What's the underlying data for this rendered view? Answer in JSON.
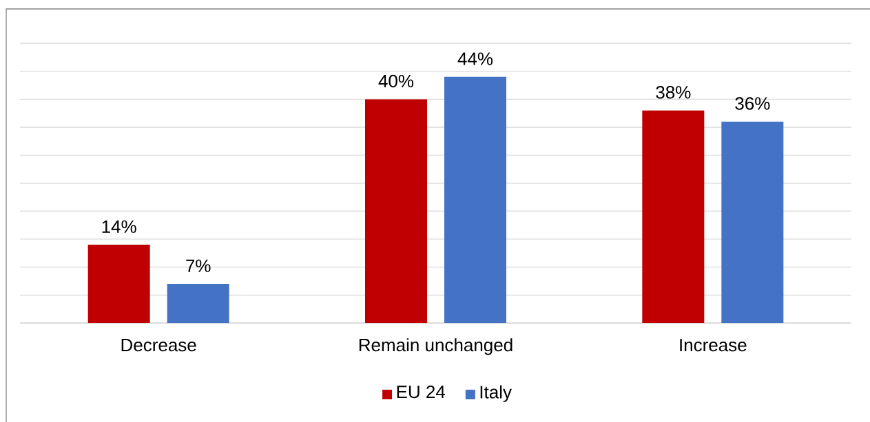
{
  "chart_data": {
    "type": "bar",
    "categories": [
      "Decrease",
      "Remain unchanged",
      "Increase"
    ],
    "series": [
      {
        "name": "EU 24",
        "color": "#c00000",
        "values": [
          14,
          40,
          38
        ],
        "value_labels": [
          "14%",
          "40%",
          "38%"
        ]
      },
      {
        "name": "Italy",
        "color": "#4472c4",
        "values": [
          7,
          44,
          36
        ],
        "value_labels": [
          "7%",
          "44%",
          "36%"
        ]
      }
    ],
    "ylim": [
      0,
      50
    ],
    "yticks": [
      {
        "value": 0,
        "label": null
      },
      {
        "value": 5,
        "label": null
      },
      {
        "value": 10,
        "label": null
      },
      {
        "value": 15,
        "label": null
      },
      {
        "value": 20,
        "label": null
      },
      {
        "value": 25,
        "label": null
      },
      {
        "value": 30,
        "label": null
      },
      {
        "value": 35,
        "label": null
      },
      {
        "value": 40,
        "label": null
      },
      {
        "value": 45,
        "label": null
      },
      {
        "value": 50,
        "label": null
      }
    ],
    "tick_labels": "x",
    "grid": "y",
    "legend": "bottom"
  }
}
